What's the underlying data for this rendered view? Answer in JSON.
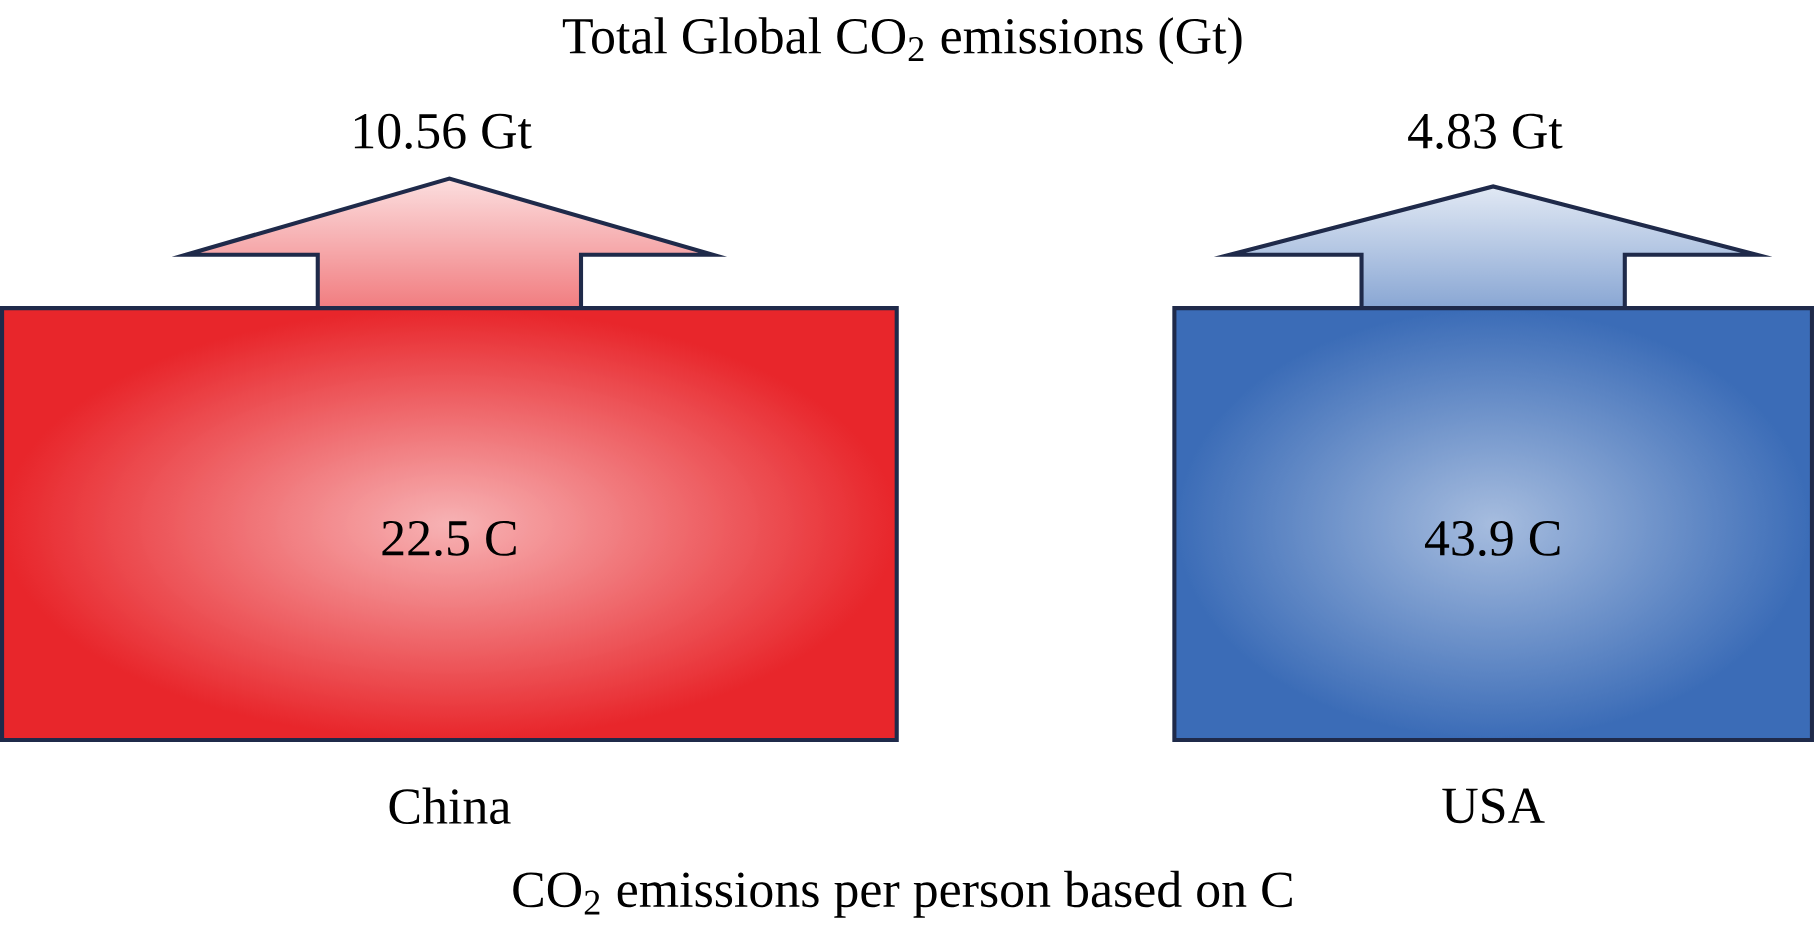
{
  "chart_data": {
    "type": "other",
    "title": "Total Global CO$_{2}$ emissions (Gt)",
    "xlabel": "CO$_{2}$ emissions per person based on C",
    "categories": [
      "China",
      "USA"
    ],
    "series": [
      {
        "values": [
          10.56,
          4.83
        ],
        "value_labels": [
          "10.56 Gt",
          "4.83 Gt"
        ],
        "colors": [
          "#e8262b",
          "#3b6cb7"
        ]
      },
      {
        "values": [
          22.5,
          43.9
        ],
        "value_labels": [
          "22.5 C",
          "43.9 C"
        ],
        "colors": [
          "#e8262b",
          "#3b6cb7"
        ]
      }
    ]
  }
}
